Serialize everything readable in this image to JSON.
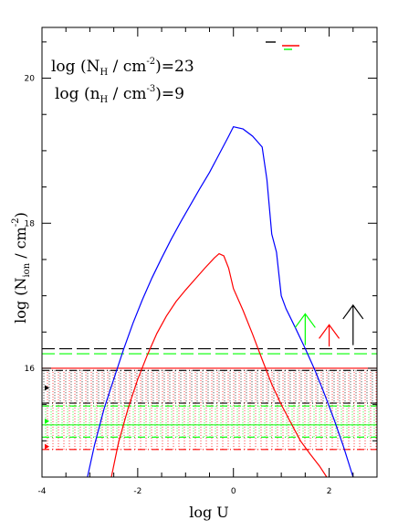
{
  "chart_data": {
    "type": "line",
    "xlabel": "log U",
    "ylabel_parts": [
      "log (N",
      "ion",
      " / cm",
      "-2",
      ")"
    ],
    "xlim": [
      -4,
      3
    ],
    "ylim": [
      14.5,
      20.7
    ],
    "xticks": [
      -4,
      -2,
      0,
      2
    ],
    "xtick_labels": [
      "-4",
      "-2",
      "0",
      "2"
    ],
    "yticks": [
      16,
      18,
      20
    ],
    "ytick_labels": [
      "16",
      "18",
      "20"
    ],
    "annotations": [
      {
        "parts": [
          "log (N",
          "H",
          " / cm",
          "-2",
          ")=23"
        ]
      },
      {
        "parts": [
          "log (n",
          "H",
          " / cm",
          "-3",
          ")=9"
        ]
      }
    ],
    "series": [
      {
        "color": "#0000ff",
        "x": [
          -3.05,
          -2.9,
          -2.7,
          -2.5,
          -2.3,
          -2.1,
          -1.9,
          -1.7,
          -1.5,
          -1.3,
          -1.1,
          -0.9,
          -0.7,
          -0.5,
          -0.3,
          -0.1,
          0.0,
          0.2,
          0.4,
          0.6,
          0.7,
          0.8,
          0.9,
          1.0,
          1.1,
          1.3,
          1.5,
          1.7,
          1.9,
          2.1,
          2.3,
          2.5
        ],
        "y": [
          14.5,
          14.95,
          15.45,
          15.85,
          16.25,
          16.62,
          16.95,
          17.25,
          17.52,
          17.78,
          18.02,
          18.25,
          18.48,
          18.7,
          18.95,
          19.2,
          19.33,
          19.3,
          19.2,
          19.05,
          18.6,
          17.85,
          17.6,
          17.0,
          16.82,
          16.55,
          16.27,
          15.98,
          15.65,
          15.3,
          14.92,
          14.5
        ]
      },
      {
        "color": "#ff0000",
        "x": [
          -2.55,
          -2.4,
          -2.2,
          -2.0,
          -1.8,
          -1.6,
          -1.4,
          -1.2,
          -1.0,
          -0.8,
          -0.6,
          -0.4,
          -0.3,
          -0.2,
          -0.1,
          0.0,
          0.2,
          0.4,
          0.6,
          0.8,
          1.0,
          1.2,
          1.4,
          1.6,
          1.8,
          1.95
        ],
        "y": [
          14.5,
          14.98,
          15.45,
          15.85,
          16.18,
          16.48,
          16.72,
          16.92,
          17.08,
          17.23,
          17.38,
          17.52,
          17.58,
          17.55,
          17.38,
          17.1,
          16.8,
          16.47,
          16.12,
          15.78,
          15.5,
          15.25,
          15.0,
          14.82,
          14.65,
          14.5
        ]
      }
    ],
    "horizontal_lines": [
      {
        "y": 16.27,
        "color": "#000000",
        "style": "long-dash",
        "x_start": -4,
        "x_end": 3
      },
      {
        "y": 16.2,
        "color": "#00ff00",
        "style": "long-dash",
        "x_start": -4,
        "x_end": 3
      },
      {
        "y": 16.0,
        "color": "#ff0000",
        "style": "solid",
        "x_start": -4,
        "x_end": 3
      },
      {
        "y": 15.97,
        "color": "#000000",
        "style": "dash-dot",
        "x_start": -4,
        "x_end": 3
      },
      {
        "y": 15.52,
        "color": "#000000",
        "style": "dash-dot",
        "x_start": -4,
        "x_end": 3
      },
      {
        "y": 15.48,
        "color": "#00ff00",
        "style": "dash-dot",
        "x_start": -4,
        "x_end": 3
      },
      {
        "y": 15.22,
        "color": "#00ff00",
        "style": "solid",
        "x_start": -4,
        "x_end": 3
      },
      {
        "y": 15.05,
        "color": "#00ff00",
        "style": "dash-dot",
        "x_start": -4,
        "x_end": 3
      },
      {
        "y": 14.88,
        "color": "#ff0000",
        "style": "dash-dot",
        "x_start": -4,
        "x_end": 3
      }
    ],
    "hatched_bands": [
      {
        "y_low": 15.52,
        "y_high": 15.97,
        "color": "#000000"
      },
      {
        "y_low": 15.05,
        "y_high": 15.48,
        "color": "#00ff00"
      },
      {
        "y_low": 14.88,
        "y_high": 15.95,
        "color": "#ff0000"
      }
    ],
    "lower_limit_arrows": [
      {
        "x": 1.5,
        "y_base": 16.32,
        "y_tip": 16.75,
        "color": "#00ff00"
      },
      {
        "x": 2.0,
        "y_base": 16.3,
        "y_tip": 16.6,
        "color": "#ff0000"
      },
      {
        "x": 2.5,
        "y_base": 16.32,
        "y_tip": 16.87,
        "color": "#000000"
      }
    ],
    "edge_markers": [
      {
        "y": 15.73,
        "color": "#000000"
      },
      {
        "y": 15.27,
        "color": "#00ff00"
      },
      {
        "y": 14.92,
        "color": "#ff0000"
      }
    ],
    "legend_swatches": [
      {
        "color": "#000000"
      },
      {
        "color": "#ff0000"
      },
      {
        "color": "#00ff00"
      }
    ]
  }
}
